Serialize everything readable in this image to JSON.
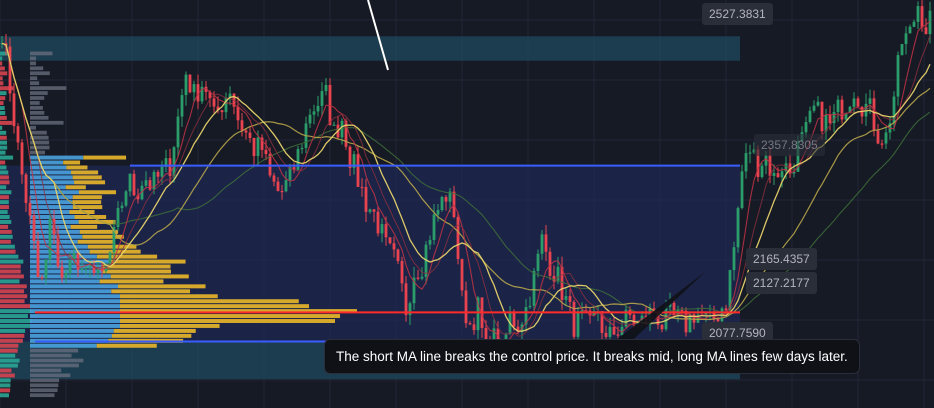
{
  "colors": {
    "background": "#161a25",
    "grid": "#232736",
    "zone_fill": "#1e2a55",
    "band_fill": "#1f4a5e",
    "up_candle": "#2a9d6a",
    "down_candle": "#e8434f",
    "short_ma": "#e8d36a",
    "mid_ma": "#b8a64a",
    "long_ma": "#3e6e3a",
    "red_ma": "#c23345",
    "poc_line": "#ff2a2a",
    "boundary_line": "#3b5cff",
    "vp_value_area": "#4aa3df",
    "vp_right": "#e6b42a",
    "vp_left_up": "#2aa594",
    "vp_left_down": "#d64550",
    "vp_outside": "#6b7080",
    "annotation_line": "#ffffff"
  },
  "chart_data": {
    "type": "line",
    "title": "",
    "xlabel": "",
    "ylabel": "",
    "ylim": [
      2040,
      2575
    ],
    "price_labels": {
      "top_band": "2527.3831",
      "upper_level": "2357.8305",
      "poc": "2165.4357",
      "lower_level": "2127.2177",
      "bottom_band": "2077.7590"
    },
    "levels": {
      "top_band": 2527.3831,
      "upper_level": 2357.8305,
      "poc": 2165.4357,
      "lower_level": 2127.2177,
      "bottom_band": 2077.759
    },
    "annotation": "The short MA line breaks the control price. It breaks mid, long MA lines few days later.",
    "close_path": [
      [
        0,
        2555
      ],
      [
        8,
        2480
      ],
      [
        14,
        2420
      ],
      [
        20,
        2360
      ],
      [
        28,
        2300
      ],
      [
        34,
        2250
      ],
      [
        40,
        2190
      ],
      [
        46,
        2230
      ],
      [
        52,
        2300
      ],
      [
        58,
        2230
      ],
      [
        64,
        2190
      ],
      [
        70,
        2250
      ],
      [
        76,
        2230
      ],
      [
        84,
        2200
      ],
      [
        90,
        2240
      ],
      [
        96,
        2205
      ],
      [
        104,
        2215
      ],
      [
        112,
        2250
      ],
      [
        120,
        2300
      ],
      [
        128,
        2340
      ],
      [
        136,
        2320
      ],
      [
        144,
        2345
      ],
      [
        152,
        2330
      ],
      [
        160,
        2345
      ],
      [
        170,
        2360
      ],
      [
        178,
        2420
      ],
      [
        186,
        2480
      ],
      [
        194,
        2450
      ],
      [
        204,
        2470
      ],
      [
        214,
        2420
      ],
      [
        222,
        2440
      ],
      [
        230,
        2460
      ],
      [
        238,
        2420
      ],
      [
        246,
        2400
      ],
      [
        254,
        2380
      ],
      [
        262,
        2380
      ],
      [
        270,
        2340
      ],
      [
        280,
        2320
      ],
      [
        290,
        2340
      ],
      [
        300,
        2380
      ],
      [
        310,
        2430
      ],
      [
        318,
        2440
      ],
      [
        326,
        2450
      ],
      [
        334,
        2400
      ],
      [
        342,
        2420
      ],
      [
        350,
        2370
      ],
      [
        358,
        2340
      ],
      [
        366,
        2310
      ],
      [
        376,
        2290
      ],
      [
        386,
        2250
      ],
      [
        396,
        2230
      ],
      [
        406,
        2170
      ],
      [
        414,
        2220
      ],
      [
        422,
        2230
      ],
      [
        430,
        2270
      ],
      [
        438,
        2300
      ],
      [
        446,
        2320
      ],
      [
        454,
        2300
      ],
      [
        462,
        2180
      ],
      [
        470,
        2150
      ],
      [
        478,
        2170
      ],
      [
        486,
        2110
      ],
      [
        494,
        2130
      ],
      [
        502,
        2110
      ],
      [
        510,
        2160
      ],
      [
        518,
        2150
      ],
      [
        526,
        2170
      ],
      [
        534,
        2210
      ],
      [
        542,
        2260
      ],
      [
        550,
        2230
      ],
      [
        558,
        2210
      ],
      [
        566,
        2180
      ],
      [
        574,
        2150
      ],
      [
        582,
        2155
      ],
      [
        590,
        2145
      ],
      [
        598,
        2170
      ],
      [
        606,
        2125
      ],
      [
        614,
        2140
      ],
      [
        622,
        2150
      ],
      [
        630,
        2160
      ],
      [
        638,
        2150
      ],
      [
        646,
        2155
      ],
      [
        654,
        2170
      ],
      [
        662,
        2150
      ],
      [
        670,
        2160
      ],
      [
        678,
        2155
      ],
      [
        686,
        2150
      ],
      [
        694,
        2165
      ],
      [
        702,
        2160
      ],
      [
        710,
        2150
      ],
      [
        718,
        2165
      ],
      [
        726,
        2180
      ],
      [
        734,
        2250
      ],
      [
        742,
        2350
      ],
      [
        750,
        2380
      ],
      [
        758,
        2360
      ],
      [
        766,
        2370
      ],
      [
        774,
        2340
      ],
      [
        782,
        2360
      ],
      [
        790,
        2350
      ],
      [
        798,
        2380
      ],
      [
        806,
        2400
      ],
      [
        814,
        2430
      ],
      [
        822,
        2420
      ],
      [
        830,
        2410
      ],
      [
        838,
        2430
      ],
      [
        846,
        2440
      ],
      [
        854,
        2460
      ],
      [
        862,
        2440
      ],
      [
        870,
        2430
      ],
      [
        878,
        2400
      ],
      [
        886,
        2395
      ],
      [
        894,
        2450
      ],
      [
        902,
        2520
      ],
      [
        910,
        2530
      ],
      [
        918,
        2570
      ],
      [
        926,
        2540
      ],
      [
        934,
        2560
      ]
    ]
  }
}
